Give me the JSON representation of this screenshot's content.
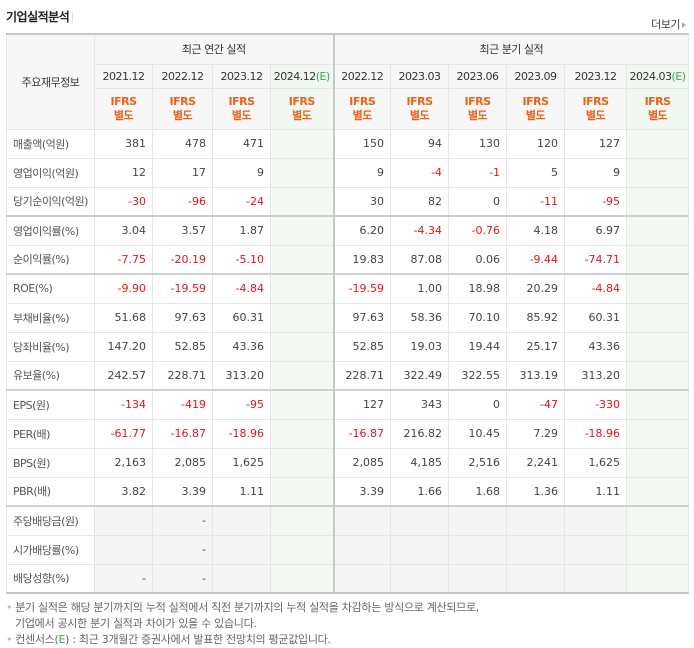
{
  "header": {
    "title": "기업실적분석",
    "more_label": "더보기"
  },
  "table": {
    "row_header": "주요재무정보",
    "groups": {
      "annual": "최근 연간 실적",
      "quarterly": "최근 분기 실적"
    },
    "annual_periods": [
      {
        "label": "2021.12",
        "est": ""
      },
      {
        "label": "2022.12",
        "est": ""
      },
      {
        "label": "2023.12",
        "est": ""
      },
      {
        "label": "2024.12",
        "est": "(E)"
      }
    ],
    "quarterly_periods": [
      {
        "label": "2022.12",
        "est": ""
      },
      {
        "label": "2023.03",
        "est": ""
      },
      {
        "label": "2023.06",
        "est": ""
      },
      {
        "label": "2023.09",
        "est": ""
      },
      {
        "label": "2023.12",
        "est": ""
      },
      {
        "label": "2024.03",
        "est": "(E)"
      }
    ],
    "ifrs_line1": "IFRS",
    "ifrs_line2": "별도",
    "rows": [
      {
        "label": "매출액(억원)",
        "annual": [
          "381",
          "478",
          "471",
          ""
        ],
        "quarterly": [
          "150",
          "94",
          "130",
          "120",
          "127",
          ""
        ]
      },
      {
        "label": "영업이익(억원)",
        "annual": [
          "12",
          "17",
          "9",
          ""
        ],
        "quarterly": [
          "9",
          "-4",
          "-1",
          "5",
          "9",
          ""
        ]
      },
      {
        "label": "당기순이익(억원)",
        "annual": [
          "-30",
          "-96",
          "-24",
          ""
        ],
        "quarterly": [
          "30",
          "82",
          "0",
          "-11",
          "-95",
          ""
        ]
      },
      {
        "label": "영업이익률(%)",
        "annual": [
          "3.04",
          "3.57",
          "1.87",
          ""
        ],
        "quarterly": [
          "6.20",
          "-4.34",
          "-0.76",
          "4.18",
          "6.97",
          ""
        ]
      },
      {
        "label": "순이익률(%)",
        "annual": [
          "-7.75",
          "-20.19",
          "-5.10",
          ""
        ],
        "quarterly": [
          "19.83",
          "87.08",
          "0.06",
          "-9.44",
          "-74.71",
          ""
        ]
      },
      {
        "label": "ROE(%)",
        "annual": [
          "-9.90",
          "-19.59",
          "-4.84",
          ""
        ],
        "quarterly": [
          "-19.59",
          "1.00",
          "18.98",
          "20.29",
          "-4.84",
          ""
        ]
      },
      {
        "label": "부채비율(%)",
        "annual": [
          "51.68",
          "97.63",
          "60.31",
          ""
        ],
        "quarterly": [
          "97.63",
          "58.36",
          "70.10",
          "85.92",
          "60.31",
          ""
        ]
      },
      {
        "label": "당좌비율(%)",
        "annual": [
          "147.20",
          "52.85",
          "43.36",
          ""
        ],
        "quarterly": [
          "52.85",
          "19.03",
          "19.44",
          "25.17",
          "43.36",
          ""
        ]
      },
      {
        "label": "유보율(%)",
        "annual": [
          "242.57",
          "228.71",
          "313.20",
          ""
        ],
        "quarterly": [
          "228.71",
          "322.49",
          "322.55",
          "313.19",
          "313.20",
          ""
        ]
      },
      {
        "label": "EPS(원)",
        "annual": [
          "-134",
          "-419",
          "-95",
          ""
        ],
        "quarterly": [
          "127",
          "343",
          "0",
          "-47",
          "-330",
          ""
        ]
      },
      {
        "label": "PER(배)",
        "annual": [
          "-61.77",
          "-16.87",
          "-18.96",
          ""
        ],
        "quarterly": [
          "-16.87",
          "216.82",
          "10.45",
          "7.29",
          "-18.96",
          ""
        ]
      },
      {
        "label": "BPS(원)",
        "annual": [
          "2,163",
          "2,085",
          "1,625",
          ""
        ],
        "quarterly": [
          "2,085",
          "4,185",
          "2,516",
          "2,241",
          "1,625",
          ""
        ]
      },
      {
        "label": "PBR(배)",
        "annual": [
          "3.82",
          "3.39",
          "1.11",
          ""
        ],
        "quarterly": [
          "3.39",
          "1.66",
          "1.68",
          "1.36",
          "1.11",
          ""
        ]
      },
      {
        "label": "주당배당금(원)",
        "annual": [
          "",
          "-",
          "",
          ""
        ],
        "quarterly": [
          "",
          "",
          "",
          "",
          "",
          ""
        ]
      },
      {
        "label": "시가배당률(%)",
        "annual": [
          "",
          "-",
          "",
          ""
        ],
        "quarterly": [
          "",
          "",
          "",
          "",
          "",
          ""
        ]
      },
      {
        "label": "배당성향(%)",
        "annual": [
          "-",
          "-",
          "",
          ""
        ],
        "quarterly": [
          "",
          "",
          "",
          "",
          "",
          ""
        ]
      }
    ]
  },
  "notes": {
    "line1": "분기 실적은 해당 분기까지의 누적 실적에서 직전 분기까지의 누적 실적을 차감하는 방식으로 계산되므로,",
    "line2": "기업에서 공시한 분기 실적과 차이가 있을 수 있습니다.",
    "line3_prefix": "컨센서스(",
    "line3_e": "E",
    "line3_suffix": ") : 최근 3개월간 증권사에서 발표한 전망치의 평균값입니다."
  },
  "colors": {
    "negative": "#e0141e",
    "ifrs": "#e8621a",
    "estimate_tag": "#3aa757",
    "estimate_bg": "#f4f9f4"
  }
}
